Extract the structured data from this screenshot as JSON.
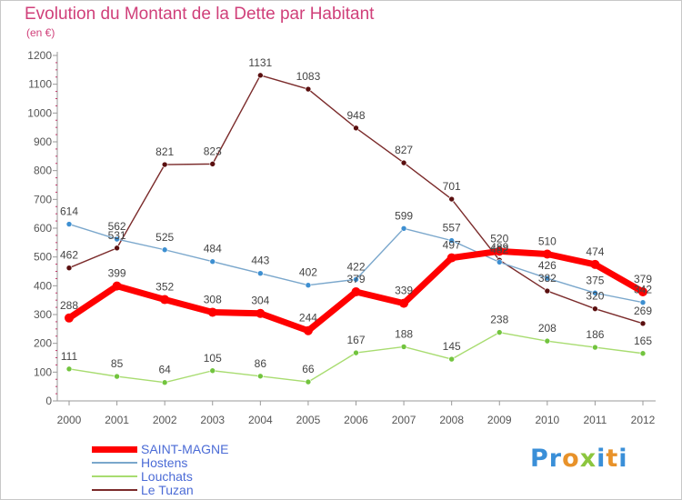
{
  "header": {
    "title": "Evolution du Montant de la Dette par Habitant",
    "unit": "(en €)"
  },
  "logo": {
    "text": "Proxiti"
  },
  "colors": {
    "title": "#d0407a",
    "legend_text": "#4b6bd6",
    "axis": "#999999"
  },
  "chart_data": {
    "type": "line",
    "title": "Evolution du Montant de la Dette par Habitant",
    "subtitle": "(en €)",
    "xlabel": "",
    "ylabel": "",
    "x": [
      "2000",
      "2001",
      "2002",
      "2003",
      "2004",
      "2005",
      "2006",
      "2007",
      "2008",
      "2009",
      "2010",
      "2011",
      "2012"
    ],
    "ylim": [
      0,
      1200
    ],
    "yticks": [
      0,
      100,
      200,
      300,
      400,
      500,
      600,
      700,
      800,
      900,
      1000,
      1100,
      1200
    ],
    "grid": false,
    "legend_position": "bottom-left",
    "series": [
      {
        "name": "Le Tuzan",
        "color": "#7b2b2b",
        "marker": "#5a0f0f",
        "values": [
          462,
          531,
          821,
          823,
          1131,
          1083,
          948,
          827,
          701,
          489,
          382,
          320,
          269
        ],
        "labels": [
          "462",
          "531",
          "821",
          "823",
          "1131",
          "1083",
          "948",
          "827",
          "701",
          "489",
          "382",
          "320",
          "269"
        ]
      },
      {
        "name": "Louchats",
        "color": "#a8dc70",
        "marker": "#72c43e",
        "values": [
          111,
          85,
          64,
          105,
          86,
          66,
          167,
          188,
          145,
          238,
          208,
          186,
          165
        ],
        "labels": [
          "111",
          "85",
          "64",
          "105",
          "86",
          "66",
          "167",
          "188",
          "145",
          "238",
          "208",
          "186",
          "165"
        ]
      },
      {
        "name": "Hostens",
        "color": "#7aa7cc",
        "marker": "#3d8fd1",
        "values": [
          614,
          562,
          525,
          484,
          443,
          402,
          422,
          599,
          557,
          482,
          426,
          375,
          342
        ],
        "labels": [
          "614",
          "562",
          "525",
          "484",
          "443",
          "402",
          "422",
          "599",
          "557",
          "482",
          "426",
          "375",
          "342"
        ]
      },
      {
        "name": "SAINT-MAGNE",
        "color": "#ff0000",
        "marker": "#ff0000",
        "values": [
          288,
          399,
          352,
          308,
          304,
          244,
          379,
          339,
          497,
          520,
          510,
          474,
          379
        ],
        "labels": [
          "288",
          "399",
          "352",
          "308",
          "304",
          "244",
          "379",
          "339",
          "497",
          "520",
          "510",
          "474",
          "379"
        ]
      }
    ]
  }
}
